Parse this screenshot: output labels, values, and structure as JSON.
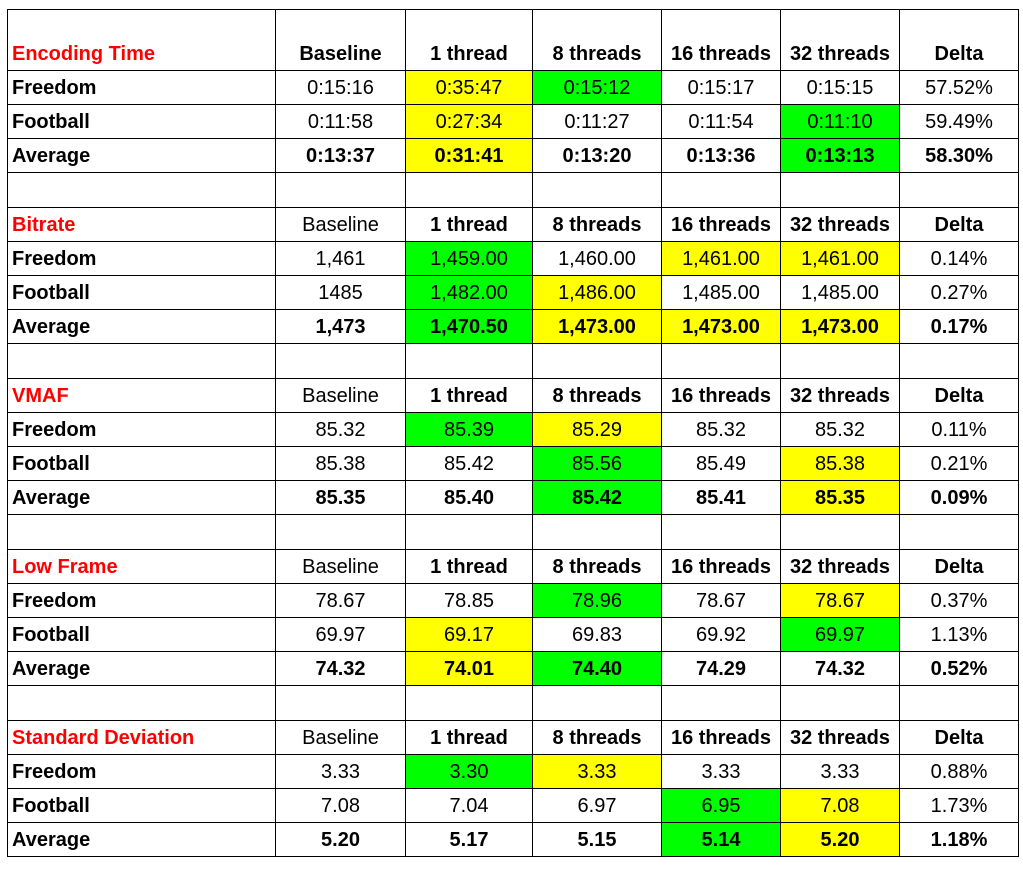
{
  "colors": {
    "section_title": "#ff0000",
    "green_highlight": "#00ff00",
    "yellow_highlight": "#ffff00"
  },
  "chart_data": {
    "type": "table",
    "column_headers": [
      "Baseline",
      "1 thread",
      "8 threads",
      "16 threads",
      "32 threads",
      "Delta"
    ],
    "sections": [
      {
        "title": "Encoding Time",
        "headers": [
          "Baseline",
          "1 thread",
          "8 threads",
          "16 threads",
          "32 threads",
          "Delta"
        ],
        "header_bold": [
          true,
          true,
          true,
          true,
          true,
          true
        ],
        "rows": [
          {
            "label": "Freedom",
            "values": [
              "0:15:16",
              "0:35:47",
              "0:15:12",
              "0:15:17",
              "0:15:15",
              "57.52%"
            ],
            "highlight": [
              "",
              "yellow",
              "green",
              "",
              "",
              ""
            ]
          },
          {
            "label": "Football",
            "values": [
              "0:11:58",
              "0:27:34",
              "0:11:27",
              "0:11:54",
              "0:11:10",
              "59.49%"
            ],
            "highlight": [
              "",
              "yellow",
              "",
              "",
              "green",
              ""
            ]
          },
          {
            "label": "Average",
            "values": [
              "0:13:37",
              "0:31:41",
              "0:13:20",
              "0:13:36",
              "0:13:13",
              "58.30%"
            ],
            "highlight": [
              "",
              "yellow",
              "",
              "",
              "green",
              ""
            ]
          }
        ]
      },
      {
        "title": "Bitrate",
        "headers": [
          "Baseline",
          "1 thread",
          "8 threads",
          "16 threads",
          "32 threads",
          "Delta"
        ],
        "header_bold": [
          false,
          true,
          true,
          true,
          true,
          true
        ],
        "rows": [
          {
            "label": "Freedom",
            "values": [
              "1,461",
              "1,459.00",
              "1,460.00",
              "1,461.00",
              "1,461.00",
              "0.14%"
            ],
            "highlight": [
              "",
              "green",
              "",
              "yellow",
              "yellow",
              ""
            ]
          },
          {
            "label": "Football",
            "values": [
              "1485",
              "1,482.00",
              "1,486.00",
              "1,485.00",
              "1,485.00",
              "0.27%"
            ],
            "highlight": [
              "",
              "green",
              "yellow",
              "",
              "",
              ""
            ]
          },
          {
            "label": "Average",
            "values": [
              "1,473",
              "1,470.50",
              "1,473.00",
              "1,473.00",
              "1,473.00",
              "0.17%"
            ],
            "highlight": [
              "",
              "green",
              "yellow",
              "yellow",
              "yellow",
              ""
            ]
          }
        ]
      },
      {
        "title": "VMAF",
        "headers": [
          "Baseline",
          "1 thread",
          "8 threads",
          "16 threads",
          "32 threads",
          "Delta"
        ],
        "header_bold": [
          false,
          true,
          true,
          true,
          true,
          true
        ],
        "rows": [
          {
            "label": "Freedom",
            "values": [
              "85.32",
              "85.39",
              "85.29",
              "85.32",
              "85.32",
              "0.11%"
            ],
            "highlight": [
              "",
              "green",
              "yellow",
              "",
              "",
              ""
            ]
          },
          {
            "label": "Football",
            "values": [
              "85.38",
              "85.42",
              "85.56",
              "85.49",
              "85.38",
              "0.21%"
            ],
            "highlight": [
              "",
              "",
              "green",
              "",
              "yellow",
              ""
            ]
          },
          {
            "label": "Average",
            "values": [
              "85.35",
              "85.40",
              "85.42",
              "85.41",
              "85.35",
              "0.09%"
            ],
            "highlight": [
              "",
              "",
              "green",
              "",
              "yellow",
              ""
            ]
          }
        ]
      },
      {
        "title": "Low Frame",
        "headers": [
          "Baseline",
          "1 thread",
          "8 threads",
          "16 threads",
          "32 threads",
          "Delta"
        ],
        "header_bold": [
          false,
          true,
          true,
          true,
          true,
          true
        ],
        "rows": [
          {
            "label": "Freedom",
            "values": [
              "78.67",
              "78.85",
              "78.96",
              "78.67",
              "78.67",
              "0.37%"
            ],
            "highlight": [
              "",
              "",
              "green",
              "",
              "yellow",
              ""
            ]
          },
          {
            "label": "Football",
            "values": [
              "69.97",
              "69.17",
              "69.83",
              "69.92",
              "69.97",
              "1.13%"
            ],
            "highlight": [
              "",
              "yellow",
              "",
              "",
              "green",
              ""
            ]
          },
          {
            "label": "Average",
            "values": [
              "74.32",
              "74.01",
              "74.40",
              "74.29",
              "74.32",
              "0.52%"
            ],
            "highlight": [
              "",
              "yellow",
              "green",
              "",
              "",
              ""
            ]
          }
        ]
      },
      {
        "title": "Standard Deviation",
        "headers": [
          "Baseline",
          "1 thread",
          "8 threads",
          "16 threads",
          "32 threads",
          "Delta"
        ],
        "header_bold": [
          false,
          true,
          true,
          true,
          true,
          true
        ],
        "rows": [
          {
            "label": "Freedom",
            "values": [
              "3.33",
              "3.30",
              "3.33",
              "3.33",
              "3.33",
              "0.88%"
            ],
            "highlight": [
              "",
              "green",
              "yellow",
              "",
              "",
              ""
            ]
          },
          {
            "label": "Football",
            "values": [
              "7.08",
              "7.04",
              "6.97",
              "6.95",
              "7.08",
              "1.73%"
            ],
            "highlight": [
              "",
              "",
              "",
              "green",
              "yellow",
              ""
            ]
          },
          {
            "label": "Average",
            "values": [
              "5.20",
              "5.17",
              "5.15",
              "5.14",
              "5.20",
              "1.18%"
            ],
            "highlight": [
              "",
              "",
              "",
              "green",
              "yellow",
              ""
            ]
          }
        ]
      }
    ]
  }
}
